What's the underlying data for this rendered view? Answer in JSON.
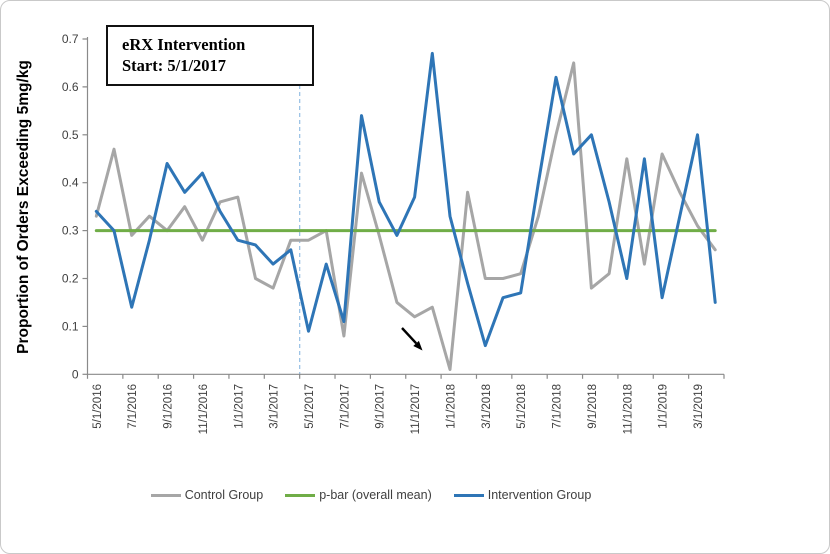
{
  "frame": {
    "background": "#ffffff",
    "border_color": "#c9c9c9"
  },
  "annotation_box": {
    "line1": "eRX Intervention",
    "line2": "Start: 5/1/2017"
  },
  "legend": {
    "position": "bottom",
    "items": [
      {
        "label": "Control Group",
        "color": "#A6A6A6"
      },
      {
        "label": "p-bar (overall mean)",
        "color": "#70AD47"
      },
      {
        "label": "Intervention Group",
        "color": "#2E75B6"
      }
    ]
  },
  "chart_data": {
    "type": "line",
    "title": "",
    "xlabel": "",
    "ylabel": "Proportion of Orders Exceeding 5mg/kg",
    "ylim": [
      0,
      0.7
    ],
    "y_tick_labels": [
      "0",
      "0.1",
      "0.2",
      "0.3",
      "0.4",
      "0.5",
      "0.6",
      "0.7"
    ],
    "grid": false,
    "legend_position": "bottom",
    "x_tick_label_interval": 2,
    "x_categories": [
      "5/1/2016",
      "6/1/2016",
      "7/1/2016",
      "8/1/2016",
      "9/1/2016",
      "10/1/2016",
      "11/1/2016",
      "12/1/2016",
      "1/1/2017",
      "2/1/2017",
      "3/1/2017",
      "4/1/2017",
      "5/1/2017",
      "6/1/2017",
      "7/1/2017",
      "8/1/2017",
      "9/1/2017",
      "10/1/2017",
      "11/1/2017",
      "12/1/2017",
      "1/1/2018",
      "2/1/2018",
      "3/1/2018",
      "4/1/2018",
      "5/1/2018",
      "6/1/2018",
      "7/1/2018",
      "8/1/2018",
      "9/1/2018",
      "10/1/2018",
      "11/1/2018",
      "12/1/2018",
      "1/1/2019",
      "2/1/2019",
      "3/1/2019",
      "4/1/2019"
    ],
    "series": [
      {
        "name": "Control Group",
        "color": "#A6A6A6",
        "values": [
          0.33,
          0.47,
          0.29,
          0.33,
          0.3,
          0.35,
          0.28,
          0.36,
          0.37,
          0.2,
          0.18,
          0.28,
          0.28,
          0.3,
          0.08,
          0.42,
          0.29,
          0.15,
          0.12,
          0.14,
          0.01,
          0.38,
          0.2,
          0.2,
          0.21,
          0.33,
          0.5,
          0.65,
          0.18,
          0.21,
          0.45,
          0.23,
          0.46,
          0.38,
          0.31,
          0.26
        ]
      },
      {
        "name": "p-bar (overall mean)",
        "color": "#70AD47",
        "values_constant": 0.3
      },
      {
        "name": "Intervention Group",
        "color": "#2E75B6",
        "values": [
          0.34,
          0.3,
          0.14,
          0.28,
          0.44,
          0.38,
          0.42,
          0.34,
          0.28,
          0.27,
          0.23,
          0.26,
          0.09,
          0.23,
          0.11,
          0.54,
          0.36,
          0.29,
          0.37,
          0.67,
          0.33,
          0.19,
          0.06,
          0.16,
          0.17,
          0.4,
          0.62,
          0.46,
          0.5,
          0.36,
          0.2,
          0.45,
          0.16,
          0.33,
          0.5,
          0.15
        ]
      }
    ],
    "reference_line": {
      "x": "5/1/2017",
      "style": "dashed",
      "color": "#9DC3E6",
      "label": "eRX intervention start"
    },
    "arrow_annotation": {
      "points_to": "Control Group low point near 12/1/2017",
      "color": "#000000"
    }
  }
}
